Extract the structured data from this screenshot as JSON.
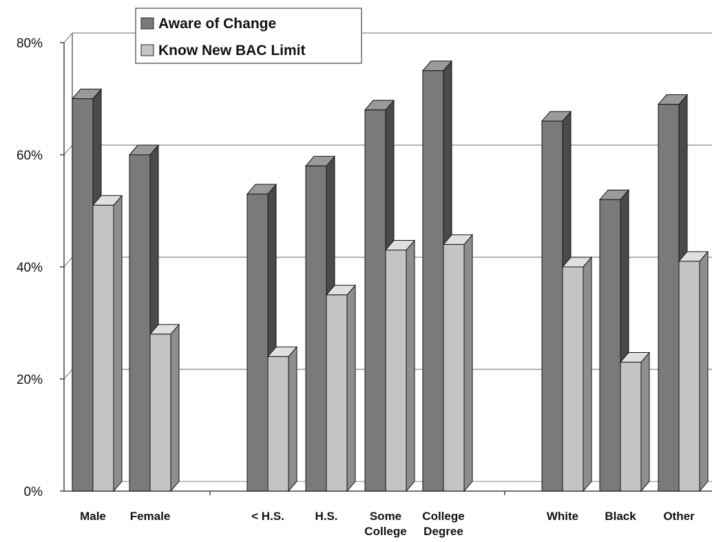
{
  "chart_data": {
    "type": "bar",
    "title": "",
    "xlabel": "",
    "ylabel": "",
    "ylim": [
      0,
      80
    ],
    "y_ticks": [
      "0%",
      "20%",
      "40%",
      "60%",
      "80%"
    ],
    "y_tick_values": [
      0,
      20,
      40,
      60,
      80
    ],
    "grid": true,
    "legend_position": "top-left",
    "categories": [
      [
        "Male"
      ],
      [
        "Female"
      ],
      [
        "< H.S."
      ],
      [
        "H.S."
      ],
      [
        "Some",
        "College"
      ],
      [
        "College",
        "Degree"
      ],
      [
        "White"
      ],
      [
        "Black"
      ],
      [
        "Other"
      ]
    ],
    "series": [
      {
        "name": "Aware of Change",
        "color": "#7a7a7a",
        "values": [
          70,
          60,
          53,
          58,
          68,
          75,
          66,
          52,
          69
        ]
      },
      {
        "name": "Know New BAC Limit",
        "color": "#c4c4c4",
        "values": [
          51,
          28,
          24,
          35,
          43,
          44,
          40,
          23,
          41
        ]
      }
    ]
  }
}
